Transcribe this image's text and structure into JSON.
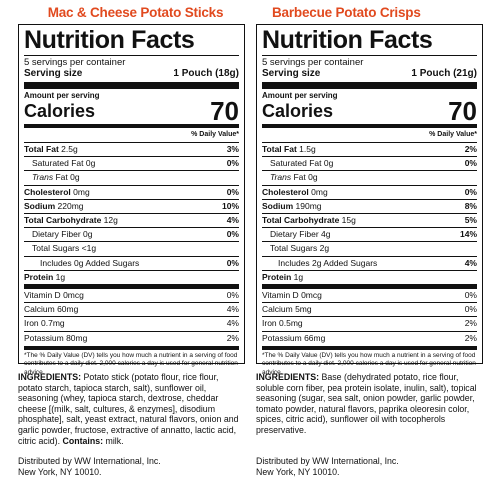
{
  "products": [
    {
      "name": "Mac & Cheese Potato Sticks",
      "label": {
        "title": "Nutrition Facts",
        "servings": "5 servings per container",
        "serving_size_label": "Serving size",
        "serving_size_value": "1 Pouch (18g)",
        "amount_per_serving": "Amount per serving",
        "calories_label": "Calories",
        "calories_value": "70",
        "dv_header": "% Daily Value*",
        "total_fat": {
          "label": "Total Fat",
          "amount": "2.5g",
          "dv": "3%"
        },
        "saturated_fat": {
          "label": "Saturated Fat",
          "amount": "0g",
          "dv": "0%"
        },
        "trans_fat": {
          "label": "Trans",
          "label_rest": "Fat",
          "amount": "0g"
        },
        "cholesterol": {
          "label": "Cholesterol",
          "amount": "0mg",
          "dv": "0%"
        },
        "sodium": {
          "label": "Sodium",
          "amount": "220mg",
          "dv": "10%"
        },
        "total_carbohydrate": {
          "label": "Total Carbohydrate",
          "amount": "12g",
          "dv": "4%"
        },
        "dietary_fiber": {
          "label": "Dietary Fiber",
          "amount": "0g",
          "dv": "0%"
        },
        "total_sugars": {
          "label": "Total Sugars",
          "amount": "<1g"
        },
        "added_sugars": {
          "label": "Includes",
          "amount": "0g",
          "label_rest": "Added Sugars",
          "dv": "0%"
        },
        "protein": {
          "label": "Protein",
          "amount": "1g"
        },
        "vitamin_d": {
          "label": "Vitamin D",
          "amount": "0mcg",
          "dv": "0%"
        },
        "calcium": {
          "label": "Calcium",
          "amount": "60mg",
          "dv": "4%"
        },
        "iron": {
          "label": "Iron",
          "amount": "0.7mg",
          "dv": "4%"
        },
        "potassium": {
          "label": "Potassium",
          "amount": "80mg",
          "dv": "2%"
        },
        "footnote": "*The % Daily Value (DV) tells you how much a nutrient in a serving of food contributes to a daily diet. 2,000 calories a day is used for general nutrition advice."
      },
      "ingredients_label": "INGREDIENTS:",
      "ingredients_text": "Potato stick (potato flour, rice flour, potato starch, tapioca starch, salt), sunflower oil, seasoning (whey, tapioca starch, dextrose, cheddar cheese [(milk, salt, cultures, & enzymes], disodium phosphate], salt, yeast extract, natural flavors, onion and garlic powder, fructose, extractive of annatto, lactic acid, citric acid).",
      "contains_label": "Contains:",
      "contains_text": "milk.",
      "distributor_line1": "Distributed by WW International, Inc.",
      "distributor_line2": "New York, NY 10010."
    },
    {
      "name": "Barbecue Potato Crisps",
      "label": {
        "title": "Nutrition Facts",
        "servings": "5 servings per container",
        "serving_size_label": "Serving size",
        "serving_size_value": "1 Pouch (21g)",
        "amount_per_serving": "Amount per serving",
        "calories_label": "Calories",
        "calories_value": "70",
        "dv_header": "% Daily Value*",
        "total_fat": {
          "label": "Total Fat",
          "amount": "1.5g",
          "dv": "2%"
        },
        "saturated_fat": {
          "label": "Saturated Fat",
          "amount": "0g",
          "dv": "0%"
        },
        "trans_fat": {
          "label": "Trans",
          "label_rest": "Fat",
          "amount": "0g"
        },
        "cholesterol": {
          "label": "Cholesterol",
          "amount": "0mg",
          "dv": "0%"
        },
        "sodium": {
          "label": "Sodium",
          "amount": "190mg",
          "dv": "8%"
        },
        "total_carbohydrate": {
          "label": "Total Carbohydrate",
          "amount": "15g",
          "dv": "5%"
        },
        "dietary_fiber": {
          "label": "Dietary Fiber",
          "amount": "4g",
          "dv": "14%"
        },
        "total_sugars": {
          "label": "Total Sugars",
          "amount": "2g"
        },
        "added_sugars": {
          "label": "Includes",
          "amount": "2g",
          "label_rest": "Added Sugars",
          "dv": "4%"
        },
        "protein": {
          "label": "Protein",
          "amount": "1g"
        },
        "vitamin_d": {
          "label": "Vitamin D",
          "amount": "0mcg",
          "dv": "0%"
        },
        "calcium": {
          "label": "Calcium",
          "amount": "5mg",
          "dv": "0%"
        },
        "iron": {
          "label": "Iron",
          "amount": "0.5mg",
          "dv": "2%"
        },
        "potassium": {
          "label": "Potassium",
          "amount": "66mg",
          "dv": "2%"
        },
        "footnote": "*The % Daily Value (DV) tells you how much a nutrient in a serving of food contributes to a daily diet. 2,000 calories a day is used for general nutrition advice."
      },
      "ingredients_label": "INGREDIENTS:",
      "ingredients_text": "Base (dehydrated potato, rice flour, soluble corn fiber, pea protein isolate, inulin, salt), topical seasoning (sugar, sea salt, onion powder, garlic powder, tomato powder, natural flavors, paprika oleoresin color, spices, citric acid), sunflower oil with tocopherols preservative.",
      "distributor_line1": "Distributed by WW International, Inc.",
      "distributor_line2": "New York, NY 10010."
    }
  ],
  "colors": {
    "product_title": "#e14a1f",
    "text": "#111111"
  }
}
